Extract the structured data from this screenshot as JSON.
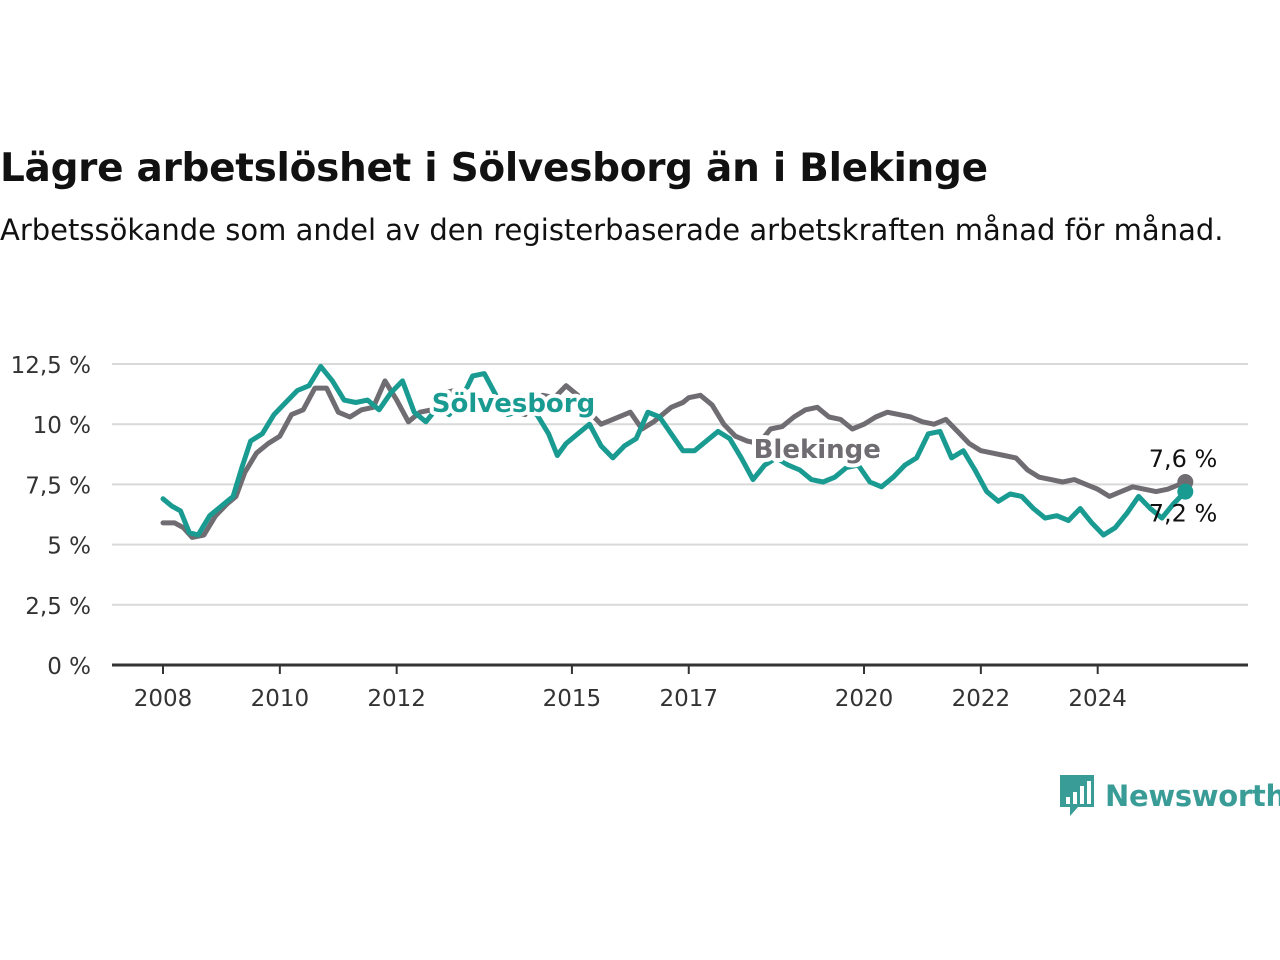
{
  "title": "Lägre arbetslöshet i Sölvesborg än i Blekinge",
  "subtitle": "Arbetssökande som andel av den registerbaserade arbetskraften månad för månad.",
  "brand": {
    "name": "Newsworthy",
    "icon": "newsworthy-logo-icon",
    "color": "#3a9c96"
  },
  "chart_data": {
    "type": "line",
    "title": "Lägre arbetslöshet i Sölvesborg än i Blekinge",
    "subtitle": "Arbetssökande som andel av den registerbaserade arbetskraften månad för månad.",
    "xlabel": "",
    "ylabel": "",
    "ylim": [
      0,
      12.5
    ],
    "xlim": [
      2008.0,
      2025.7
    ],
    "yticks": [
      0,
      2.5,
      5,
      7.5,
      10,
      12.5
    ],
    "ytick_labels": [
      "0 %",
      "2,5 %",
      "5 %",
      "7,5 %",
      "10 %",
      "12,5 %"
    ],
    "xticks": [
      2008,
      2010,
      2012,
      2015,
      2017,
      2020,
      2022,
      2024
    ],
    "xtick_labels": [
      "2008",
      "2010",
      "2012",
      "2015",
      "2017",
      "2020",
      "2022",
      "2024"
    ],
    "grid": true,
    "legend": "inline labels",
    "series": [
      {
        "name": "Blekinge",
        "color": "#6f6c72",
        "end_label": "7,6 %",
        "points": [
          [
            2008.0,
            5.9
          ],
          [
            2008.2,
            5.9
          ],
          [
            2008.35,
            5.7
          ],
          [
            2008.5,
            5.3
          ],
          [
            2008.7,
            5.4
          ],
          [
            2008.9,
            6.2
          ],
          [
            2009.1,
            6.7
          ],
          [
            2009.25,
            7.0
          ],
          [
            2009.4,
            8.0
          ],
          [
            2009.6,
            8.8
          ],
          [
            2009.8,
            9.2
          ],
          [
            2010.0,
            9.5
          ],
          [
            2010.2,
            10.4
          ],
          [
            2010.4,
            10.6
          ],
          [
            2010.6,
            11.5
          ],
          [
            2010.8,
            11.5
          ],
          [
            2011.0,
            10.5
          ],
          [
            2011.2,
            10.3
          ],
          [
            2011.4,
            10.6
          ],
          [
            2011.6,
            10.7
          ],
          [
            2011.8,
            11.8
          ],
          [
            2012.0,
            11.0
          ],
          [
            2012.2,
            10.1
          ],
          [
            2012.4,
            10.5
          ],
          [
            2012.6,
            10.6
          ],
          [
            2012.8,
            11.3
          ],
          [
            2013.0,
            11.4
          ],
          [
            2013.3,
            10.7
          ],
          [
            2013.6,
            11.0
          ],
          [
            2013.9,
            10.6
          ],
          [
            2014.2,
            10.4
          ],
          [
            2014.5,
            11.2
          ],
          [
            2014.7,
            11.1
          ],
          [
            2014.9,
            11.6
          ],
          [
            2015.1,
            11.2
          ],
          [
            2015.3,
            10.5
          ],
          [
            2015.5,
            10.0
          ],
          [
            2015.7,
            10.2
          ],
          [
            2016.0,
            10.5
          ],
          [
            2016.2,
            9.8
          ],
          [
            2016.4,
            10.1
          ],
          [
            2016.7,
            10.7
          ],
          [
            2016.9,
            10.9
          ],
          [
            2017.0,
            11.1
          ],
          [
            2017.2,
            11.2
          ],
          [
            2017.4,
            10.8
          ],
          [
            2017.6,
            10.0
          ],
          [
            2017.8,
            9.5
          ],
          [
            2018.0,
            9.3
          ],
          [
            2018.2,
            9.2
          ],
          [
            2018.4,
            9.8
          ],
          [
            2018.6,
            9.9
          ],
          [
            2018.8,
            10.3
          ],
          [
            2019.0,
            10.6
          ],
          [
            2019.2,
            10.7
          ],
          [
            2019.4,
            10.3
          ],
          [
            2019.6,
            10.2
          ],
          [
            2019.8,
            9.8
          ],
          [
            2020.0,
            10.0
          ],
          [
            2020.2,
            10.3
          ],
          [
            2020.4,
            10.5
          ],
          [
            2020.6,
            10.4
          ],
          [
            2020.8,
            10.3
          ],
          [
            2021.0,
            10.1
          ],
          [
            2021.2,
            10.0
          ],
          [
            2021.4,
            10.2
          ],
          [
            2021.6,
            9.7
          ],
          [
            2021.8,
            9.2
          ],
          [
            2022.0,
            8.9
          ],
          [
            2022.2,
            8.8
          ],
          [
            2022.4,
            8.7
          ],
          [
            2022.6,
            8.6
          ],
          [
            2022.8,
            8.1
          ],
          [
            2023.0,
            7.8
          ],
          [
            2023.2,
            7.7
          ],
          [
            2023.4,
            7.6
          ],
          [
            2023.6,
            7.7
          ],
          [
            2023.8,
            7.5
          ],
          [
            2024.0,
            7.3
          ],
          [
            2024.2,
            7.0
          ],
          [
            2024.4,
            7.2
          ],
          [
            2024.6,
            7.4
          ],
          [
            2024.8,
            7.3
          ],
          [
            2025.0,
            7.2
          ],
          [
            2025.2,
            7.3
          ],
          [
            2025.5,
            7.6
          ]
        ]
      },
      {
        "name": "Sölvesborg",
        "color": "#1a9b92",
        "end_label": "7,2 %",
        "points": [
          [
            2008.0,
            6.9
          ],
          [
            2008.15,
            6.6
          ],
          [
            2008.3,
            6.4
          ],
          [
            2008.45,
            5.5
          ],
          [
            2008.6,
            5.4
          ],
          [
            2008.8,
            6.2
          ],
          [
            2009.0,
            6.6
          ],
          [
            2009.2,
            7.0
          ],
          [
            2009.35,
            8.2
          ],
          [
            2009.5,
            9.3
          ],
          [
            2009.7,
            9.6
          ],
          [
            2009.9,
            10.4
          ],
          [
            2010.1,
            10.9
          ],
          [
            2010.3,
            11.4
          ],
          [
            2010.5,
            11.6
          ],
          [
            2010.7,
            12.4
          ],
          [
            2010.9,
            11.8
          ],
          [
            2011.1,
            11.0
          ],
          [
            2011.3,
            10.9
          ],
          [
            2011.5,
            11.0
          ],
          [
            2011.7,
            10.6
          ],
          [
            2011.9,
            11.3
          ],
          [
            2012.1,
            11.8
          ],
          [
            2012.3,
            10.5
          ],
          [
            2012.5,
            10.1
          ],
          [
            2012.7,
            10.7
          ],
          [
            2012.9,
            10.4
          ],
          [
            2013.1,
            11.0
          ],
          [
            2013.3,
            12.0
          ],
          [
            2013.5,
            12.1
          ],
          [
            2013.7,
            11.2
          ],
          [
            2013.9,
            10.4
          ],
          [
            2014.2,
            10.6
          ],
          [
            2014.4,
            10.4
          ],
          [
            2014.6,
            9.6
          ],
          [
            2014.75,
            8.7
          ],
          [
            2014.9,
            9.2
          ],
          [
            2015.1,
            9.6
          ],
          [
            2015.3,
            10.0
          ],
          [
            2015.5,
            9.1
          ],
          [
            2015.7,
            8.6
          ],
          [
            2015.9,
            9.1
          ],
          [
            2016.1,
            9.4
          ],
          [
            2016.3,
            10.5
          ],
          [
            2016.5,
            10.3
          ],
          [
            2016.7,
            9.6
          ],
          [
            2016.9,
            8.9
          ],
          [
            2017.1,
            8.9
          ],
          [
            2017.3,
            9.3
          ],
          [
            2017.5,
            9.7
          ],
          [
            2017.7,
            9.4
          ],
          [
            2017.9,
            8.6
          ],
          [
            2018.1,
            7.7
          ],
          [
            2018.3,
            8.3
          ],
          [
            2018.5,
            8.6
          ],
          [
            2018.7,
            8.3
          ],
          [
            2018.9,
            8.1
          ],
          [
            2019.1,
            7.7
          ],
          [
            2019.3,
            7.6
          ],
          [
            2019.5,
            7.8
          ],
          [
            2019.7,
            8.2
          ],
          [
            2019.9,
            8.3
          ],
          [
            2020.1,
            7.6
          ],
          [
            2020.3,
            7.4
          ],
          [
            2020.5,
            7.8
          ],
          [
            2020.7,
            8.3
          ],
          [
            2020.9,
            8.6
          ],
          [
            2021.1,
            9.6
          ],
          [
            2021.3,
            9.7
          ],
          [
            2021.5,
            8.6
          ],
          [
            2021.7,
            8.9
          ],
          [
            2021.9,
            8.1
          ],
          [
            2022.1,
            7.2
          ],
          [
            2022.3,
            6.8
          ],
          [
            2022.5,
            7.1
          ],
          [
            2022.7,
            7.0
          ],
          [
            2022.9,
            6.5
          ],
          [
            2023.1,
            6.1
          ],
          [
            2023.3,
            6.2
          ],
          [
            2023.5,
            6.0
          ],
          [
            2023.7,
            6.5
          ],
          [
            2023.9,
            5.9
          ],
          [
            2024.1,
            5.4
          ],
          [
            2024.3,
            5.7
          ],
          [
            2024.5,
            6.3
          ],
          [
            2024.7,
            7.0
          ],
          [
            2024.9,
            6.5
          ],
          [
            2025.1,
            6.1
          ],
          [
            2025.3,
            6.7
          ],
          [
            2025.5,
            7.2
          ]
        ]
      }
    ]
  }
}
